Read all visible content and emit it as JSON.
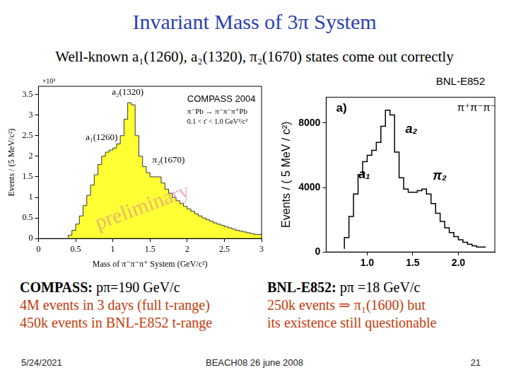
{
  "slide": {
    "title": "Invariant Mass of 3π System",
    "subtitle": "Well-known a₁(1260), a₂(1320), π₂(1670) states come out correctly",
    "source_label": "BNL-E852",
    "notes_left": {
      "heading": "COMPASS:",
      "text": "pπ=190 GeV/c",
      "lines": [
        "4M events in 3 days (full t-range)",
        "450k events in BNL-E852 t-range"
      ]
    },
    "notes_right": {
      "heading": "BNL-E852:",
      "text": "pπ =18 GeV/c",
      "lines": [
        "250k events ⇒ π₁(1600) but",
        "its existence still questionable"
      ]
    },
    "footer": {
      "date": "5/24/2021",
      "event": "BEACH08 26 june 2008",
      "page": "21"
    }
  },
  "chart_data": [
    {
      "type": "histogram",
      "line_style": "filled",
      "color": "#ffff33",
      "x_label": "Mass of π⁻π⁻π⁺ System (GeV/c²)",
      "y_label": "Events / (5 MeV/c²)",
      "bins": [
        0.4,
        0.45,
        0.5,
        0.55,
        0.6,
        0.65,
        0.7,
        0.75,
        0.8,
        0.85,
        0.9,
        0.95,
        1.0,
        1.05,
        1.1,
        1.15,
        1.2,
        1.25,
        1.3,
        1.35,
        1.4,
        1.45,
        1.5,
        1.55,
        1.6,
        1.65,
        1.7,
        1.75,
        1.8,
        1.85,
        1.9,
        1.95,
        2.0,
        2.05,
        2.1,
        2.15,
        2.2,
        2.25,
        2.3,
        2.35,
        2.4,
        2.45,
        2.5,
        2.55,
        2.6,
        2.65,
        2.7,
        2.75,
        2.8,
        2.85,
        2.9,
        2.95,
        3.0
      ],
      "values": [
        0.02,
        0.08,
        0.2,
        0.35,
        0.55,
        0.8,
        1.05,
        1.3,
        1.55,
        1.8,
        2.0,
        2.1,
        2.15,
        2.2,
        2.3,
        2.5,
        2.9,
        3.3,
        3.25,
        2.5,
        2.0,
        1.75,
        1.6,
        1.5,
        1.5,
        1.5,
        1.35,
        1.2,
        1.1,
        1.0,
        0.92,
        0.85,
        0.78,
        0.72,
        0.66,
        0.6,
        0.55,
        0.5,
        0.46,
        0.42,
        0.38,
        0.35,
        0.32,
        0.29,
        0.26,
        0.23,
        0.2,
        0.18,
        0.16,
        0.14,
        0.12,
        0.1
      ],
      "xlim": [
        0,
        3
      ],
      "xticks": [
        0,
        0.5,
        1,
        1.5,
        2,
        2.5,
        3
      ],
      "ylim": [
        0,
        3.7
      ],
      "yticks": [
        0,
        0.5,
        1,
        1.5,
        2,
        2.5,
        3,
        3.5
      ],
      "grid": false,
      "annotations": [
        {
          "text": "×10³",
          "x": 0.05,
          "y": 3.82
        },
        {
          "text": "COMPASS 2004",
          "x": 2.0,
          "y": 3.38
        },
        {
          "text": "π⁻Pb → π⁻π⁻π⁺Pb",
          "x": 2.0,
          "y": 3.08
        },
        {
          "text": "0.1 < t' < 1.0 GeV²/c²",
          "x": 2.0,
          "y": 2.83
        },
        {
          "text": "a₂(1320)",
          "x": 1.2,
          "y": 3.55
        },
        {
          "text": "a₁(1260)",
          "x": 0.85,
          "y": 2.45
        },
        {
          "text": "π₂(1670)",
          "x": 1.75,
          "y": 1.9
        },
        {
          "text": "preliminary",
          "x": 1.4,
          "y": 0.75
        }
      ]
    },
    {
      "type": "histogram",
      "line_style": "step",
      "color": "#000000",
      "y_label": "Events / ( 5 MeV / c²)",
      "bins": [
        0.75,
        0.8,
        0.85,
        0.9,
        0.95,
        1.0,
        1.05,
        1.1,
        1.15,
        1.2,
        1.25,
        1.3,
        1.35,
        1.4,
        1.45,
        1.5,
        1.55,
        1.6,
        1.65,
        1.7,
        1.75,
        1.8,
        1.85,
        1.9,
        1.95,
        2.0,
        2.05,
        2.1,
        2.15,
        2.2,
        2.25,
        2.3
      ],
      "values": [
        200,
        900,
        2200,
        3600,
        4800,
        5600,
        6000,
        6300,
        6800,
        7800,
        8800,
        8500,
        6200,
        4600,
        3900,
        3700,
        3700,
        3800,
        3900,
        3600,
        3000,
        2400,
        1900,
        1500,
        1200,
        950,
        750,
        600,
        480,
        380,
        300
      ],
      "xlim": [
        0.55,
        2.4
      ],
      "xticks": [
        {
          "value": 1,
          "label": "1.0"
        },
        1.5,
        {
          "value": 2,
          "label": "2.0"
        }
      ],
      "ylim": [
        0,
        9600
      ],
      "yticks": [
        0,
        4000,
        8000
      ],
      "grid": false,
      "annotations": [
        {
          "text": "a)",
          "x": 0.66,
          "y": 8900
        },
        {
          "text": "π⁺π⁻π⁻",
          "x": 2.2,
          "y": 8900
        },
        {
          "text": "a₂",
          "x": 1.42,
          "y": 7600
        },
        {
          "text": "a₁",
          "x": 0.97,
          "y": 4800
        },
        {
          "text": "π₂",
          "x": 1.72,
          "y": 4700
        }
      ]
    }
  ]
}
